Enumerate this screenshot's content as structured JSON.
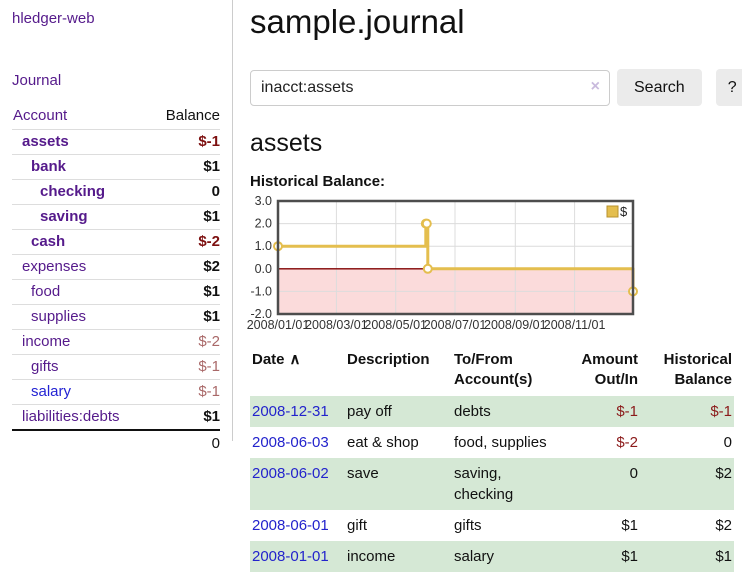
{
  "sidebar": {
    "brand": "hledger-web",
    "journal_label": "Journal",
    "accounts": {
      "header": {
        "account": "Account",
        "balance": "Balance"
      },
      "rows": [
        {
          "name": "assets",
          "balance": "$-1",
          "level": 1,
          "in_query": true
        },
        {
          "name": "bank",
          "balance": "$1",
          "level": 2,
          "in_query": true
        },
        {
          "name": "checking",
          "balance": "0",
          "level": 3,
          "in_query": true
        },
        {
          "name": "saving",
          "balance": "$1",
          "level": 3,
          "in_query": true
        },
        {
          "name": "cash",
          "balance": "$-2",
          "level": 2,
          "in_query": true
        },
        {
          "name": "expenses",
          "balance": "$2",
          "level": 1,
          "in_query": false
        },
        {
          "name": "food",
          "balance": "$1",
          "level": 2,
          "in_query": false
        },
        {
          "name": "supplies",
          "balance": "$1",
          "level": 2,
          "in_query": false
        },
        {
          "name": "income",
          "balance": "$-2",
          "level": 1,
          "in_query": false
        },
        {
          "name": "gifts",
          "balance": "$-1",
          "level": 2,
          "in_query": false
        },
        {
          "name": "salary",
          "balance": "$-1",
          "level": 2,
          "in_query": false,
          "link_state": "unvisited"
        },
        {
          "name": "liabilities:debts",
          "balance": "$1",
          "level": 1,
          "in_query": false
        }
      ],
      "total": "0"
    }
  },
  "main": {
    "title": "sample.journal",
    "search": {
      "query": "inacct:assets",
      "clear_icon": "×",
      "button_label": "Search",
      "help_label": "?"
    },
    "account_heading": "assets",
    "chart_label": "Historical Balance:"
  },
  "chart_data": {
    "type": "line",
    "step": true,
    "title": "Historical Balance",
    "series": [
      {
        "name": "$",
        "points": [
          [
            "2008-01-01",
            1
          ],
          [
            "2008-06-01",
            2
          ],
          [
            "2008-06-02",
            2
          ],
          [
            "2008-06-03",
            0
          ],
          [
            "2008-12-31",
            -1
          ]
        ]
      }
    ],
    "x_range": [
      "2008-01-01",
      "2008-12-31"
    ],
    "x_ticks": [
      {
        "date": "2008-01-01",
        "label": "2008/01/01"
      },
      {
        "date": "2008-03-01",
        "label": "2008/03/01"
      },
      {
        "date": "2008-05-01",
        "label": "2008/05/01"
      },
      {
        "date": "2008-07-01",
        "label": "2008/07/01"
      },
      {
        "date": "2008-09-01",
        "label": "2008/09/01"
      },
      {
        "date": "2008-11-01",
        "label": "2008/11/01"
      }
    ],
    "y_ticks": [
      3.0,
      2.0,
      1.0,
      0.0,
      -1.0,
      -2.0
    ],
    "ylim": [
      -2,
      3
    ],
    "grid": true,
    "legend_position": "top-right",
    "colors": {
      "line": "#e4be4e",
      "marker_fill": "#ffffff",
      "legend_border": "#b8912c",
      "negative_region": "#fbdbdb",
      "zero_line": "#800000",
      "border": "#4d4d4d",
      "gridline": "#dcdcdc",
      "tick_text": "#333333"
    }
  },
  "register": {
    "headers": [
      {
        "label": "Date",
        "align": "left",
        "sort_icon": "∧"
      },
      {
        "label": "Description",
        "align": "left"
      },
      {
        "label": "To/From Account(s)",
        "align": "left"
      },
      {
        "label": "Amount Out/In",
        "align": "right"
      },
      {
        "label": "Historical Balance",
        "align": "right"
      }
    ],
    "rows": [
      {
        "date": "2008-12-31",
        "description": "pay off",
        "accounts": "debts",
        "amount": "$-1",
        "balance": "$-1"
      },
      {
        "date": "2008-06-03",
        "description": "eat & shop",
        "accounts": "food, supplies",
        "amount": "$-2",
        "balance": "0"
      },
      {
        "date": "2008-06-02",
        "description": "save",
        "accounts": "saving, checking",
        "amount": "0",
        "balance": "$2"
      },
      {
        "date": "2008-06-01",
        "description": "gift",
        "accounts": "gifts",
        "amount": "$1",
        "balance": "$2"
      },
      {
        "date": "2008-01-01",
        "description": "income",
        "accounts": "salary",
        "amount": "$1",
        "balance": "$1"
      }
    ]
  },
  "colors": {
    "link_visited": "#551a8b",
    "link_unvisited": "#2323d3",
    "date_link": "#2323cc",
    "negative": "#8b1a1a",
    "negative_bold": "#7d1010",
    "negative_soft": "#a96868",
    "row_highlight": "#d5e8d5"
  }
}
